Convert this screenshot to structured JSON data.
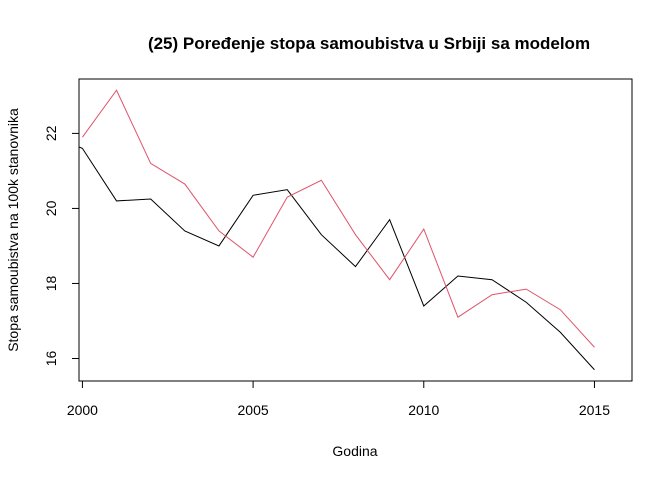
{
  "chart_data": {
    "type": "line",
    "title": "(25) Poređenje stopa samoubistva u Srbiji sa modelom",
    "xlabel": "Godina",
    "ylabel": "Stopa samoubistva na 100k stanovnika",
    "xlim": [
      1999.9,
      2016.1
    ],
    "ylim": [
      15.4,
      23.45
    ],
    "x_ticks": [
      2000,
      2005,
      2010,
      2015
    ],
    "y_ticks": [
      16,
      18,
      20,
      22
    ],
    "grid": false,
    "series": [
      {
        "color": "#000000",
        "x": [
          1999.5,
          2000,
          2001,
          2002,
          2003,
          2004,
          2005,
          2006,
          2007,
          2008,
          2009,
          2010,
          2011,
          2012,
          2013,
          2014,
          2015
        ],
        "values": [
          21.8,
          21.6,
          20.2,
          20.25,
          19.4,
          19.0,
          20.35,
          20.5,
          19.3,
          18.45,
          19.7,
          17.4,
          18.2,
          18.1,
          17.5,
          16.7,
          15.7
        ]
      },
      {
        "color": "#DF536B",
        "x": [
          2000,
          2001,
          2002,
          2003,
          2004,
          2005,
          2006,
          2007,
          2008,
          2009,
          2010,
          2011,
          2012,
          2013,
          2014,
          2015
        ],
        "values": [
          21.9,
          23.15,
          21.2,
          20.65,
          19.4,
          18.7,
          20.3,
          20.75,
          19.3,
          18.1,
          19.45,
          17.1,
          17.7,
          17.85,
          17.3,
          16.3
        ]
      }
    ]
  }
}
